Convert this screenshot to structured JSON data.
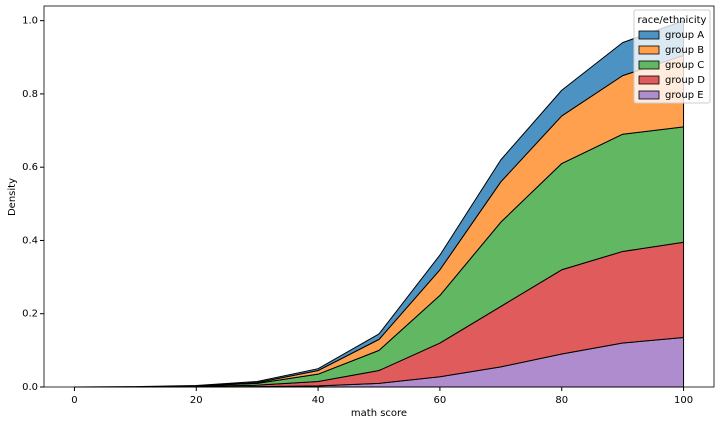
{
  "chart_data": {
    "type": "stacked-area",
    "x_label": "math score",
    "y_label": "Density",
    "x": [
      0,
      10,
      20,
      30,
      40,
      50,
      60,
      70,
      80,
      90,
      100
    ],
    "series": [
      {
        "name": "group A",
        "color": "#4c92c3",
        "values": [
          0,
          0.001,
          0.001,
          0.003,
          0.005,
          0.015,
          0.04,
          0.06,
          0.07,
          0.09,
          0.095
        ]
      },
      {
        "name": "group B",
        "color": "#ffa04f",
        "values": [
          0,
          0,
          0,
          0.002,
          0.01,
          0.03,
          0.07,
          0.11,
          0.13,
          0.16,
          0.195
        ]
      },
      {
        "name": "group C",
        "color": "#62b862",
        "values": [
          0,
          0,
          0.001,
          0.005,
          0.02,
          0.055,
          0.13,
          0.23,
          0.29,
          0.32,
          0.315
        ]
      },
      {
        "name": "group D",
        "color": "#e05c5c",
        "values": [
          0,
          0,
          0.002,
          0.004,
          0.012,
          0.035,
          0.092,
          0.165,
          0.23,
          0.25,
          0.26
        ]
      },
      {
        "name": "group E",
        "color": "#ae8ccd",
        "values": [
          0,
          0,
          0,
          0.001,
          0.003,
          0.01,
          0.028,
          0.055,
          0.09,
          0.12,
          0.135
        ]
      }
    ],
    "legend_title": "race/ethnicity",
    "legend": "upper right",
    "xlim": [
      -5,
      105
    ],
    "xticks": [
      0,
      20,
      40,
      60,
      80,
      100
    ],
    "ylim": [
      0,
      1.04
    ],
    "yticks": [
      {
        "value": 0,
        "label": "0.0"
      },
      0.2,
      0.4,
      0.6,
      0.8,
      {
        "value": 1,
        "label": "1.0"
      }
    ]
  }
}
